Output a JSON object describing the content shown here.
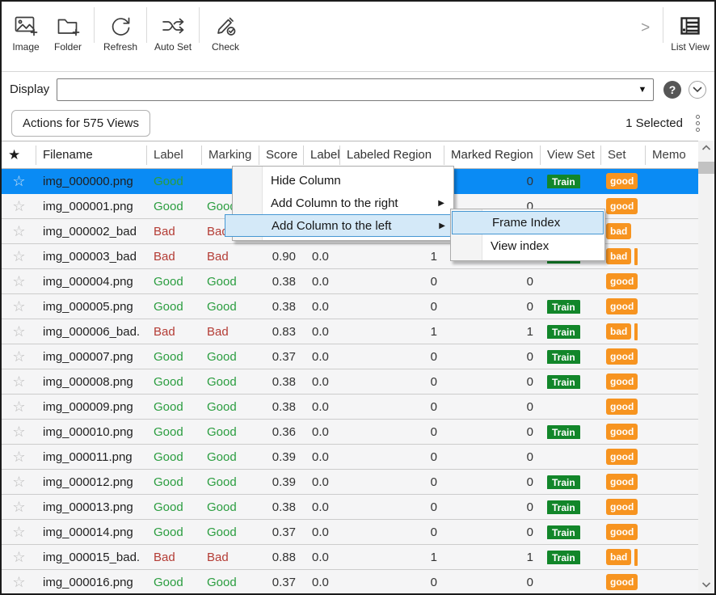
{
  "toolbar": {
    "buttons": [
      {
        "label": "Image",
        "icon": "image-add-icon"
      },
      {
        "label": "Folder",
        "icon": "folder-add-icon"
      },
      {
        "label": "Refresh",
        "icon": "refresh-icon"
      },
      {
        "label": "Auto Set",
        "icon": "shuffle-icon"
      },
      {
        "label": "Check",
        "icon": "pencil-check-icon"
      }
    ],
    "overflow_chevron": ">",
    "view_button": {
      "label": "List View",
      "icon": "list-view-icon"
    }
  },
  "display_bar": {
    "label": "Display",
    "combobox_value": "",
    "dropdown_arrow": "▼",
    "help_label": "?"
  },
  "actions_bar": {
    "actions_button": "Actions for 575 Views",
    "selected_text": "1 Selected"
  },
  "table": {
    "headers": [
      "Filename",
      "Label",
      "Marking",
      "Score",
      "Label (",
      "Labeled Region",
      "Marked Region",
      "View Set",
      "Set",
      "Memo"
    ],
    "star_header": "★",
    "star_row": "☆",
    "train_badge": "Train",
    "rows": [
      {
        "filename": "img_000000.png",
        "label": "Good",
        "marking": "",
        "score": "",
        "labelc": "",
        "labeled": "",
        "marked": "0",
        "train": true,
        "set": "good",
        "sliver": false,
        "selected": true
      },
      {
        "filename": "img_000001.png",
        "label": "Good",
        "marking": "Good",
        "score": "",
        "labelc": "",
        "labeled": "",
        "marked": "0",
        "train": false,
        "set": "good",
        "sliver": false,
        "selected": false
      },
      {
        "filename": "img_000002_bad",
        "label": "Bad",
        "marking": "Bad",
        "score": "",
        "labelc": "",
        "labeled": "",
        "marked": "",
        "train": false,
        "set": "bad",
        "sliver": false,
        "selected": false
      },
      {
        "filename": "img_000003_bad",
        "label": "Bad",
        "marking": "Bad",
        "score": "0.90",
        "labelc": "0.0",
        "labeled": "1",
        "marked": "",
        "train": true,
        "set": "bad",
        "sliver": true,
        "selected": false
      },
      {
        "filename": "img_000004.png",
        "label": "Good",
        "marking": "Good",
        "score": "0.38",
        "labelc": "0.0",
        "labeled": "0",
        "marked": "0",
        "train": false,
        "set": "good",
        "sliver": false,
        "selected": false
      },
      {
        "filename": "img_000005.png",
        "label": "Good",
        "marking": "Good",
        "score": "0.38",
        "labelc": "0.0",
        "labeled": "0",
        "marked": "0",
        "train": true,
        "set": "good",
        "sliver": false,
        "selected": false
      },
      {
        "filename": "img_000006_bad.",
        "label": "Bad",
        "marking": "Bad",
        "score": "0.83",
        "labelc": "0.0",
        "labeled": "1",
        "marked": "1",
        "train": true,
        "set": "bad",
        "sliver": true,
        "selected": false
      },
      {
        "filename": "img_000007.png",
        "label": "Good",
        "marking": "Good",
        "score": "0.37",
        "labelc": "0.0",
        "labeled": "0",
        "marked": "0",
        "train": true,
        "set": "good",
        "sliver": false,
        "selected": false
      },
      {
        "filename": "img_000008.png",
        "label": "Good",
        "marking": "Good",
        "score": "0.38",
        "labelc": "0.0",
        "labeled": "0",
        "marked": "0",
        "train": true,
        "set": "good",
        "sliver": false,
        "selected": false
      },
      {
        "filename": "img_000009.png",
        "label": "Good",
        "marking": "Good",
        "score": "0.38",
        "labelc": "0.0",
        "labeled": "0",
        "marked": "0",
        "train": false,
        "set": "good",
        "sliver": false,
        "selected": false
      },
      {
        "filename": "img_000010.png",
        "label": "Good",
        "marking": "Good",
        "score": "0.36",
        "labelc": "0.0",
        "labeled": "0",
        "marked": "0",
        "train": true,
        "set": "good",
        "sliver": false,
        "selected": false
      },
      {
        "filename": "img_000011.png",
        "label": "Good",
        "marking": "Good",
        "score": "0.39",
        "labelc": "0.0",
        "labeled": "0",
        "marked": "0",
        "train": false,
        "set": "good",
        "sliver": false,
        "selected": false
      },
      {
        "filename": "img_000012.png",
        "label": "Good",
        "marking": "Good",
        "score": "0.39",
        "labelc": "0.0",
        "labeled": "0",
        "marked": "0",
        "train": true,
        "set": "good",
        "sliver": false,
        "selected": false
      },
      {
        "filename": "img_000013.png",
        "label": "Good",
        "marking": "Good",
        "score": "0.38",
        "labelc": "0.0",
        "labeled": "0",
        "marked": "0",
        "train": true,
        "set": "good",
        "sliver": false,
        "selected": false
      },
      {
        "filename": "img_000014.png",
        "label": "Good",
        "marking": "Good",
        "score": "0.37",
        "labelc": "0.0",
        "labeled": "0",
        "marked": "0",
        "train": true,
        "set": "good",
        "sliver": false,
        "selected": false
      },
      {
        "filename": "img_000015_bad.",
        "label": "Bad",
        "marking": "Bad",
        "score": "0.88",
        "labelc": "0.0",
        "labeled": "1",
        "marked": "1",
        "train": true,
        "set": "bad",
        "sliver": true,
        "selected": false
      },
      {
        "filename": "img_000016.png",
        "label": "Good",
        "marking": "Good",
        "score": "0.37",
        "labelc": "0.0",
        "labeled": "0",
        "marked": "0",
        "train": false,
        "set": "good",
        "sliver": false,
        "selected": false
      }
    ]
  },
  "context_menu": {
    "items": [
      {
        "label": "Hide Column",
        "submenu": false,
        "highlighted": false
      },
      {
        "label": "Add Column to the right",
        "submenu": true,
        "highlighted": false
      },
      {
        "label": "Add Column to the left",
        "submenu": true,
        "highlighted": true
      }
    ],
    "submenu_arrow": "▶",
    "submenu_items": [
      {
        "label": "Frame Index",
        "highlighted": true
      },
      {
        "label": "View index",
        "highlighted": false
      }
    ]
  },
  "colors": {
    "selection_blue": "#0a8bf4",
    "good_green": "#2a9d3f",
    "bad_red": "#b43c35",
    "train_badge_green": "#12862a",
    "set_badge_orange": "#f79420",
    "menu_highlight_fill": "#d4e9f8",
    "menu_highlight_border": "#4697d3"
  }
}
